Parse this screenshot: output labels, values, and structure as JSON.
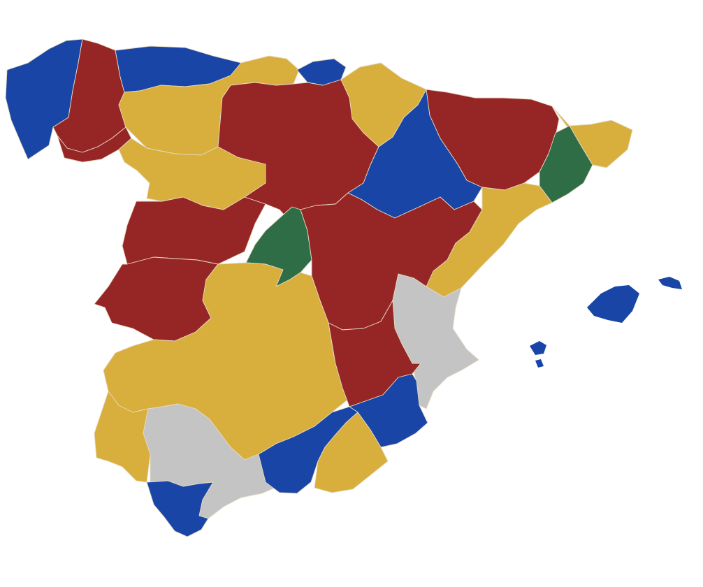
{
  "palette": {
    "blue": "#1946a6",
    "red": "#962626",
    "yellow": "#d8ae3c",
    "green": "#2f6d46",
    "gray": "#c4c4c4",
    "background": "#ffffff"
  },
  "regions": [
    {
      "name": "galicia-coast-west",
      "color": "blue"
    },
    {
      "name": "lugo",
      "color": "red"
    },
    {
      "name": "asturias-cantabria-coast",
      "color": "blue"
    },
    {
      "name": "leon-north",
      "color": "yellow"
    },
    {
      "name": "basque-coast",
      "color": "blue"
    },
    {
      "name": "navarra-rioja",
      "color": "yellow"
    },
    {
      "name": "ourense",
      "color": "red"
    },
    {
      "name": "zamora-salamanca",
      "color": "yellow"
    },
    {
      "name": "castilla-leon-east",
      "color": "red"
    },
    {
      "name": "huesca-zaragoza-west",
      "color": "blue"
    },
    {
      "name": "aragon-east",
      "color": "red"
    },
    {
      "name": "catalonia-north",
      "color": "yellow"
    },
    {
      "name": "barcelona",
      "color": "green"
    },
    {
      "name": "teruel-castellon",
      "color": "yellow"
    },
    {
      "name": "extremadura-north",
      "color": "red"
    },
    {
      "name": "madrid",
      "color": "green"
    },
    {
      "name": "cuenca-guadalajara",
      "color": "red"
    },
    {
      "name": "valencia",
      "color": "gray"
    },
    {
      "name": "badajoz",
      "color": "red"
    },
    {
      "name": "castilla-la-mancha-south",
      "color": "yellow"
    },
    {
      "name": "albacete",
      "color": "red"
    },
    {
      "name": "murcia",
      "color": "blue"
    },
    {
      "name": "huelva",
      "color": "yellow"
    },
    {
      "name": "sevilla-malaga",
      "color": "gray"
    },
    {
      "name": "granada",
      "color": "blue"
    },
    {
      "name": "almeria",
      "color": "yellow"
    },
    {
      "name": "cadiz",
      "color": "blue"
    },
    {
      "name": "mallorca",
      "color": "blue"
    },
    {
      "name": "menorca",
      "color": "blue"
    },
    {
      "name": "ibiza",
      "color": "blue"
    }
  ]
}
